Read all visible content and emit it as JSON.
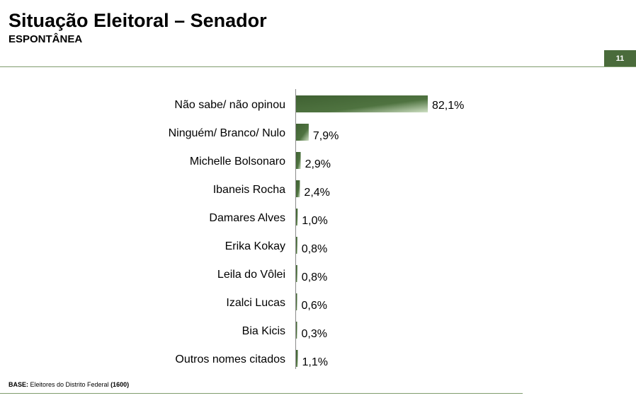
{
  "header": {
    "title": "Situação Eleitoral – Senador",
    "subtitle": "ESPONTÂNEA",
    "page_number": "11"
  },
  "footer": {
    "base_label": "BASE:",
    "base_text": " Eleitores do Distrito Federal ",
    "base_count": "(1600)"
  },
  "colors": {
    "bar_dark": "#3f6132",
    "bar_light": "#cfe0c4",
    "rule": "#7f9c6d",
    "badge": "#4a6b3b"
  },
  "chart_data": {
    "type": "bar",
    "orientation": "horizontal",
    "categories": [
      "Não sabe/ não opinou",
      "Ninguém/ Branco/ Nulo",
      "Michelle Bolsonaro",
      "Ibaneis Rocha",
      "Damares Alves",
      "Erika Kokay",
      "Leila do Vôlei",
      "Izalci Lucas",
      "Bia Kicis",
      "Outros nomes citados"
    ],
    "values": [
      82.1,
      7.9,
      2.9,
      2.4,
      1.0,
      0.8,
      0.8,
      0.6,
      0.3,
      1.1
    ],
    "value_labels": [
      "82,1%",
      "7,9%",
      "2,9%",
      "2,4%",
      "1,0%",
      "0,8%",
      "0,8%",
      "0,6%",
      "0,3%",
      "1,1%"
    ],
    "title": "",
    "xlabel": "",
    "ylabel": "",
    "xlim": [
      0,
      100
    ],
    "grid": false,
    "legend": "none"
  }
}
